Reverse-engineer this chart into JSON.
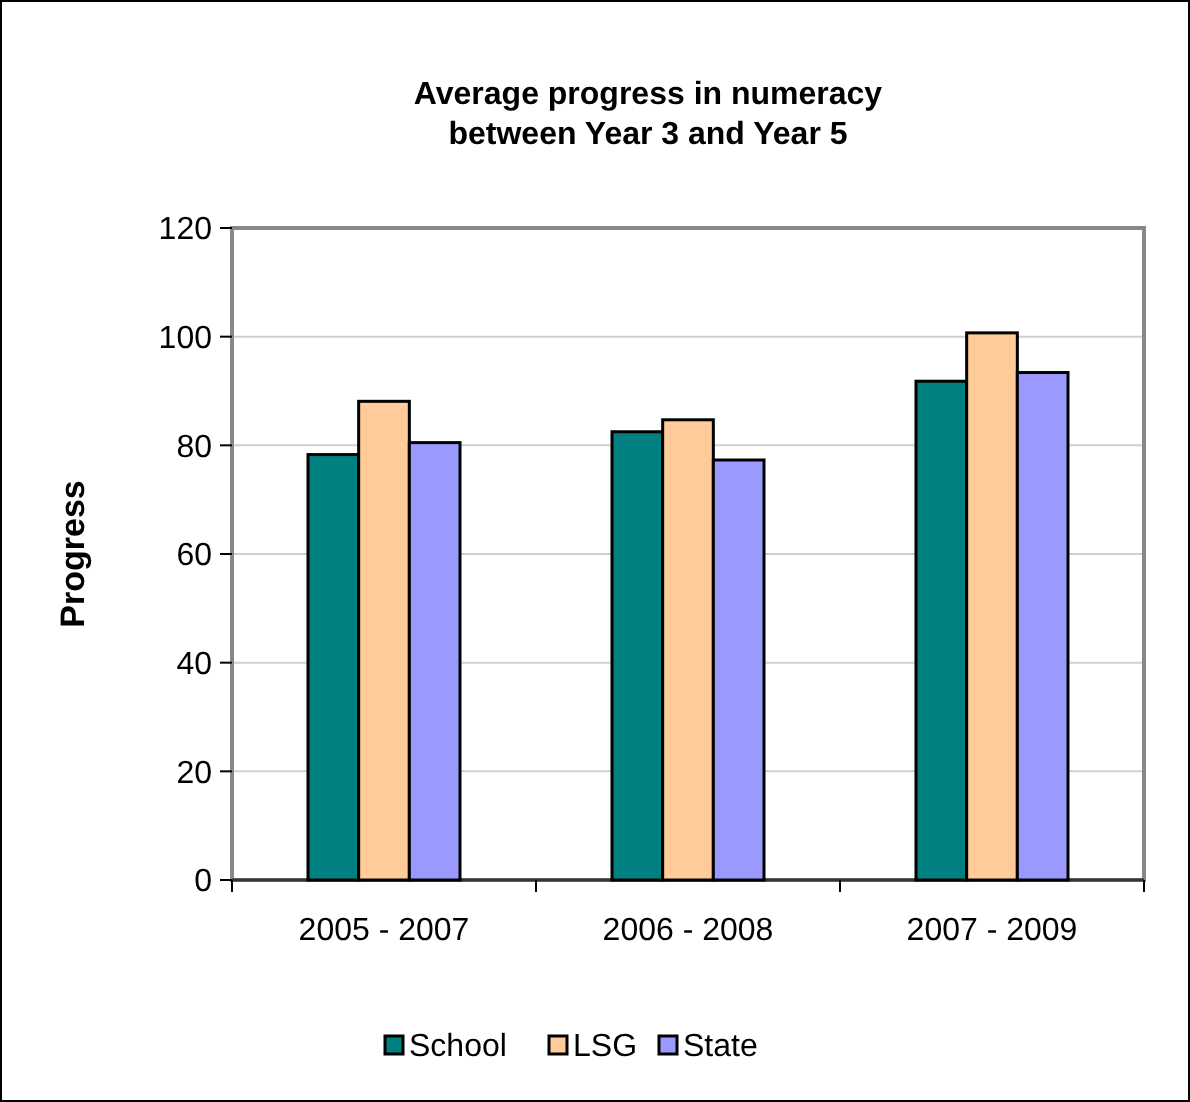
{
  "chart_data": {
    "type": "bar",
    "title": "Average progress in numeracy\nbetween Year 3 and Year 5",
    "ylabel": "Progress",
    "categories": [
      "2005 - 2007",
      "2006 - 2008",
      "2007 - 2009"
    ],
    "series": [
      {
        "name": "School",
        "color": "#008080",
        "values": [
          78.3,
          82.5,
          91.8
        ]
      },
      {
        "name": "LSG",
        "color": "#ffcc99",
        "values": [
          88.1,
          84.7,
          100.7
        ]
      },
      {
        "name": "State",
        "color": "#9999ff",
        "values": [
          80.5,
          77.3,
          93.4
        ]
      }
    ],
    "ylim": [
      0,
      120
    ],
    "yticks": [
      0,
      20,
      40,
      60,
      80,
      100,
      120
    ],
    "grid": "y",
    "legend": "bottom"
  }
}
